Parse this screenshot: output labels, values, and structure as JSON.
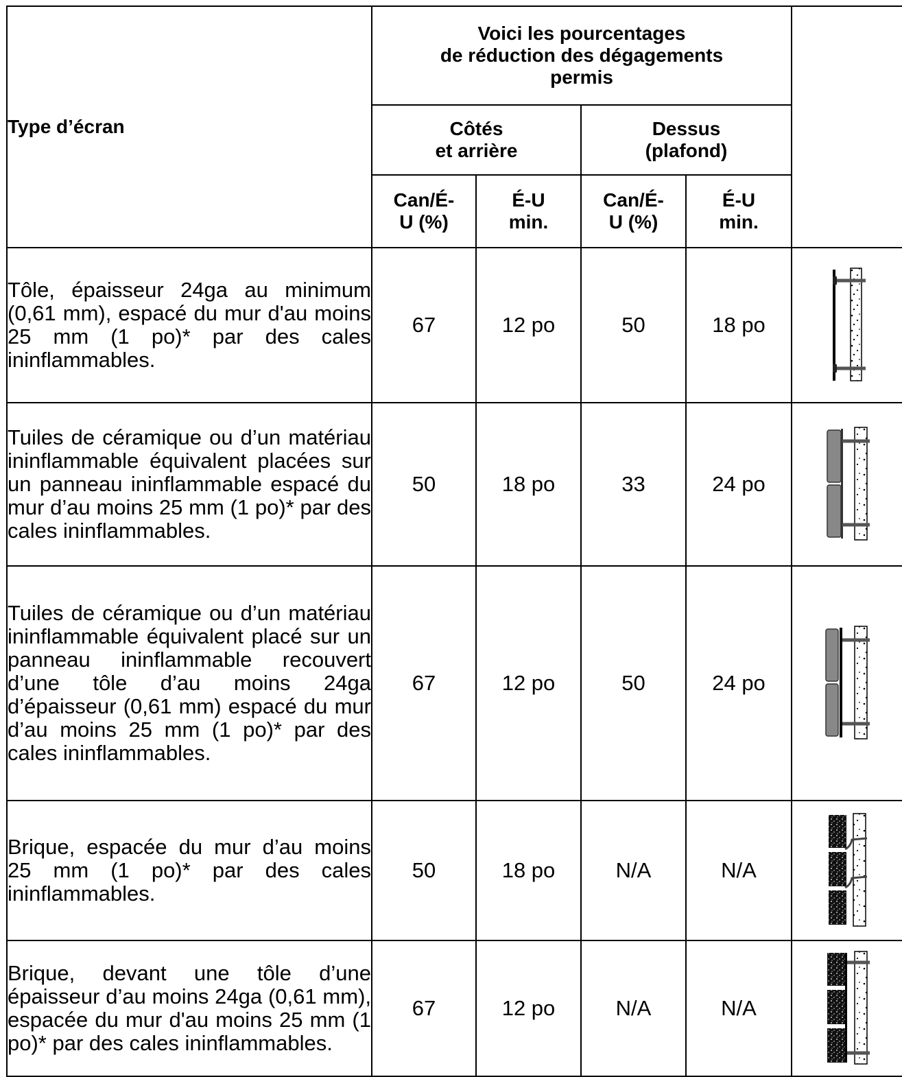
{
  "header": {
    "type_label": "Type d’écran",
    "reduction_line1": "Voici les pourcentages",
    "reduction_line2": "de réduction des dégagements",
    "reduction_line3": "permis",
    "sides_line1": "Côtés",
    "sides_line2": "et arrière",
    "top_line1": "Dessus",
    "top_line2": "(plafond)",
    "can_line1": "Can/É-",
    "can_line2": "U (%)",
    "us_line1": "É-U",
    "us_line2": "min."
  },
  "rows": [
    {
      "description": "Tôle, épaisseur 24ga au minimum (0,61 mm), espacé du mur d'au moins 25 mm (1 po)* par des cales ininflammables.",
      "sides_can": "67",
      "sides_us": "12 po",
      "top_can": "50",
      "top_us": "18 po",
      "icon": "sheet-metal-shield-icon"
    },
    {
      "description": "Tuiles de céramique ou d’un matériau ininflammable équivalent placées sur un panneau ininflammable espacé du mur d’au moins 25 mm (1 po)* par des cales ininflammables.",
      "sides_can": "50",
      "sides_us": "18 po",
      "top_can": "33",
      "top_us": "24 po",
      "icon": "ceramic-tile-shield-icon"
    },
    {
      "description": "Tuiles de céramique ou d’un matériau ininflammable équivalent placé sur un panneau ininflammable recouvert d’une tôle d’au moins 24ga d’épaisseur (0,61 mm) espacé du mur d’au moins 25 mm (1 po)* par des cales ininflammables.",
      "sides_can": "67",
      "sides_us": "12 po",
      "top_can": "50",
      "top_us": "24 po",
      "icon": "tile-on-sheet-metal-shield-icon"
    },
    {
      "description": "Brique, espacée du mur d’au moins 25 mm (1 po)* par des cales ininflammables.",
      "sides_can": "50",
      "sides_us": "18 po",
      "top_can": "N/A",
      "top_us": "N/A",
      "icon": "brick-shield-icon"
    },
    {
      "description": "Brique, devant une tôle d’une épaisseur d’au moins 24ga (0,61 mm), espacée du mur d'au moins 25 mm (1 po)* par des cales ininflammables.",
      "sides_can": "67",
      "sides_us": "12 po",
      "top_can": "N/A",
      "top_us": "N/A",
      "icon": "brick-on-sheet-metal-shield-icon"
    }
  ]
}
